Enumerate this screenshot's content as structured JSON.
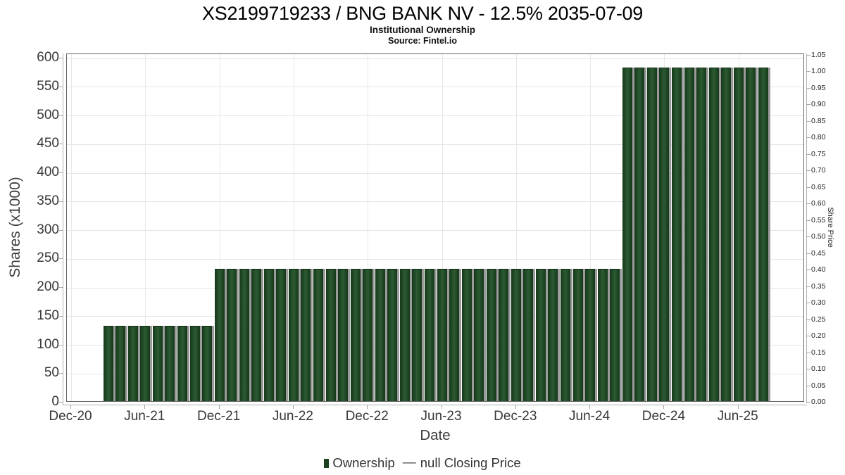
{
  "header": {
    "title": "XS2199719233 / BNG BANK NV - 12.5% 2035-07-09",
    "subtitle": "Institutional Ownership",
    "source": "Source: Fintel.io"
  },
  "colors": {
    "bar_green": "#1c4220",
    "bar_shadow": "#9b9b9b",
    "gridline": "#e5e5e5",
    "plot_border": "#636363",
    "tick_text": "#373737"
  },
  "chart_data": {
    "type": "bar",
    "title": "XS2199719233 / BNG BANK NV - 12.5% 2035-07-09",
    "subtitle": "Institutional Ownership",
    "source": "Source: Fintel.io",
    "xlabel": "Date",
    "ylabel_left": "Shares (x1000)",
    "ylabel_right": "Share Price",
    "legend_position": "bottom-center",
    "grid": true,
    "x_ticks": [
      "Dec-20",
      "Jun-21",
      "Dec-21",
      "Jun-22",
      "Dec-22",
      "Jun-23",
      "Dec-23",
      "Jun-24",
      "Dec-24",
      "Jun-25"
    ],
    "y_axis_left": {
      "min": 0,
      "max": 600,
      "ticks": [
        0,
        50,
        100,
        150,
        200,
        250,
        300,
        350,
        400,
        450,
        500,
        550,
        600
      ]
    },
    "y_axis_right": {
      "min": 0,
      "max": 1.05,
      "decimals": 2,
      "ticks": [
        0,
        0.05,
        0.1,
        0.15,
        0.2,
        0.25,
        0.3,
        0.35,
        0.4,
        0.45,
        0.5,
        0.55,
        0.6,
        0.65,
        0.7,
        0.75,
        0.8,
        0.85,
        0.9,
        0.95,
        1.0,
        1.05
      ]
    },
    "categories": [
      "Mar-21",
      "Apr-21",
      "May-21",
      "Jun-21",
      "Jul-21",
      "Aug-21",
      "Sep-21",
      "Oct-21",
      "Nov-21",
      "Dec-21",
      "Jan-22",
      "Feb-22",
      "Mar-22",
      "Apr-22",
      "May-22",
      "Jun-22",
      "Jul-22",
      "Aug-22",
      "Sep-22",
      "Oct-22",
      "Nov-22",
      "Dec-22",
      "Jan-23",
      "Feb-23",
      "Mar-23",
      "Apr-23",
      "May-23",
      "Jun-23",
      "Jul-23",
      "Aug-23",
      "Sep-23",
      "Oct-23",
      "Nov-23",
      "Dec-23",
      "Jan-24",
      "Feb-24",
      "Mar-24",
      "Apr-24",
      "May-24",
      "Jun-24",
      "Jul-24",
      "Aug-24",
      "Sep-24",
      "Oct-24",
      "Nov-24",
      "Dec-24",
      "Jan-25",
      "Feb-25",
      "Mar-25",
      "Apr-25",
      "May-25",
      "Jun-25",
      "Jul-25",
      "Aug-25"
    ],
    "series": [
      {
        "name": "Ownership",
        "type": "bar",
        "axis": "left",
        "unit": "shares_x1000",
        "color": "#1c4220",
        "values": [
          130,
          130,
          130,
          130,
          130,
          130,
          130,
          130,
          130,
          230,
          230,
          230,
          230,
          230,
          230,
          230,
          230,
          230,
          230,
          230,
          230,
          230,
          230,
          230,
          230,
          230,
          230,
          230,
          230,
          230,
          230,
          230,
          230,
          230,
          230,
          230,
          230,
          230,
          230,
          230,
          230,
          230,
          580,
          580,
          580,
          580,
          580,
          580,
          580,
          580,
          580,
          580,
          580,
          580
        ]
      },
      {
        "name": "null Closing Price",
        "type": "line",
        "axis": "right",
        "values": []
      }
    ],
    "legend": [
      {
        "label": "Ownership",
        "marker": "square",
        "color": "#1c4220"
      },
      {
        "label": "null Closing Price",
        "marker": "—"
      }
    ]
  }
}
